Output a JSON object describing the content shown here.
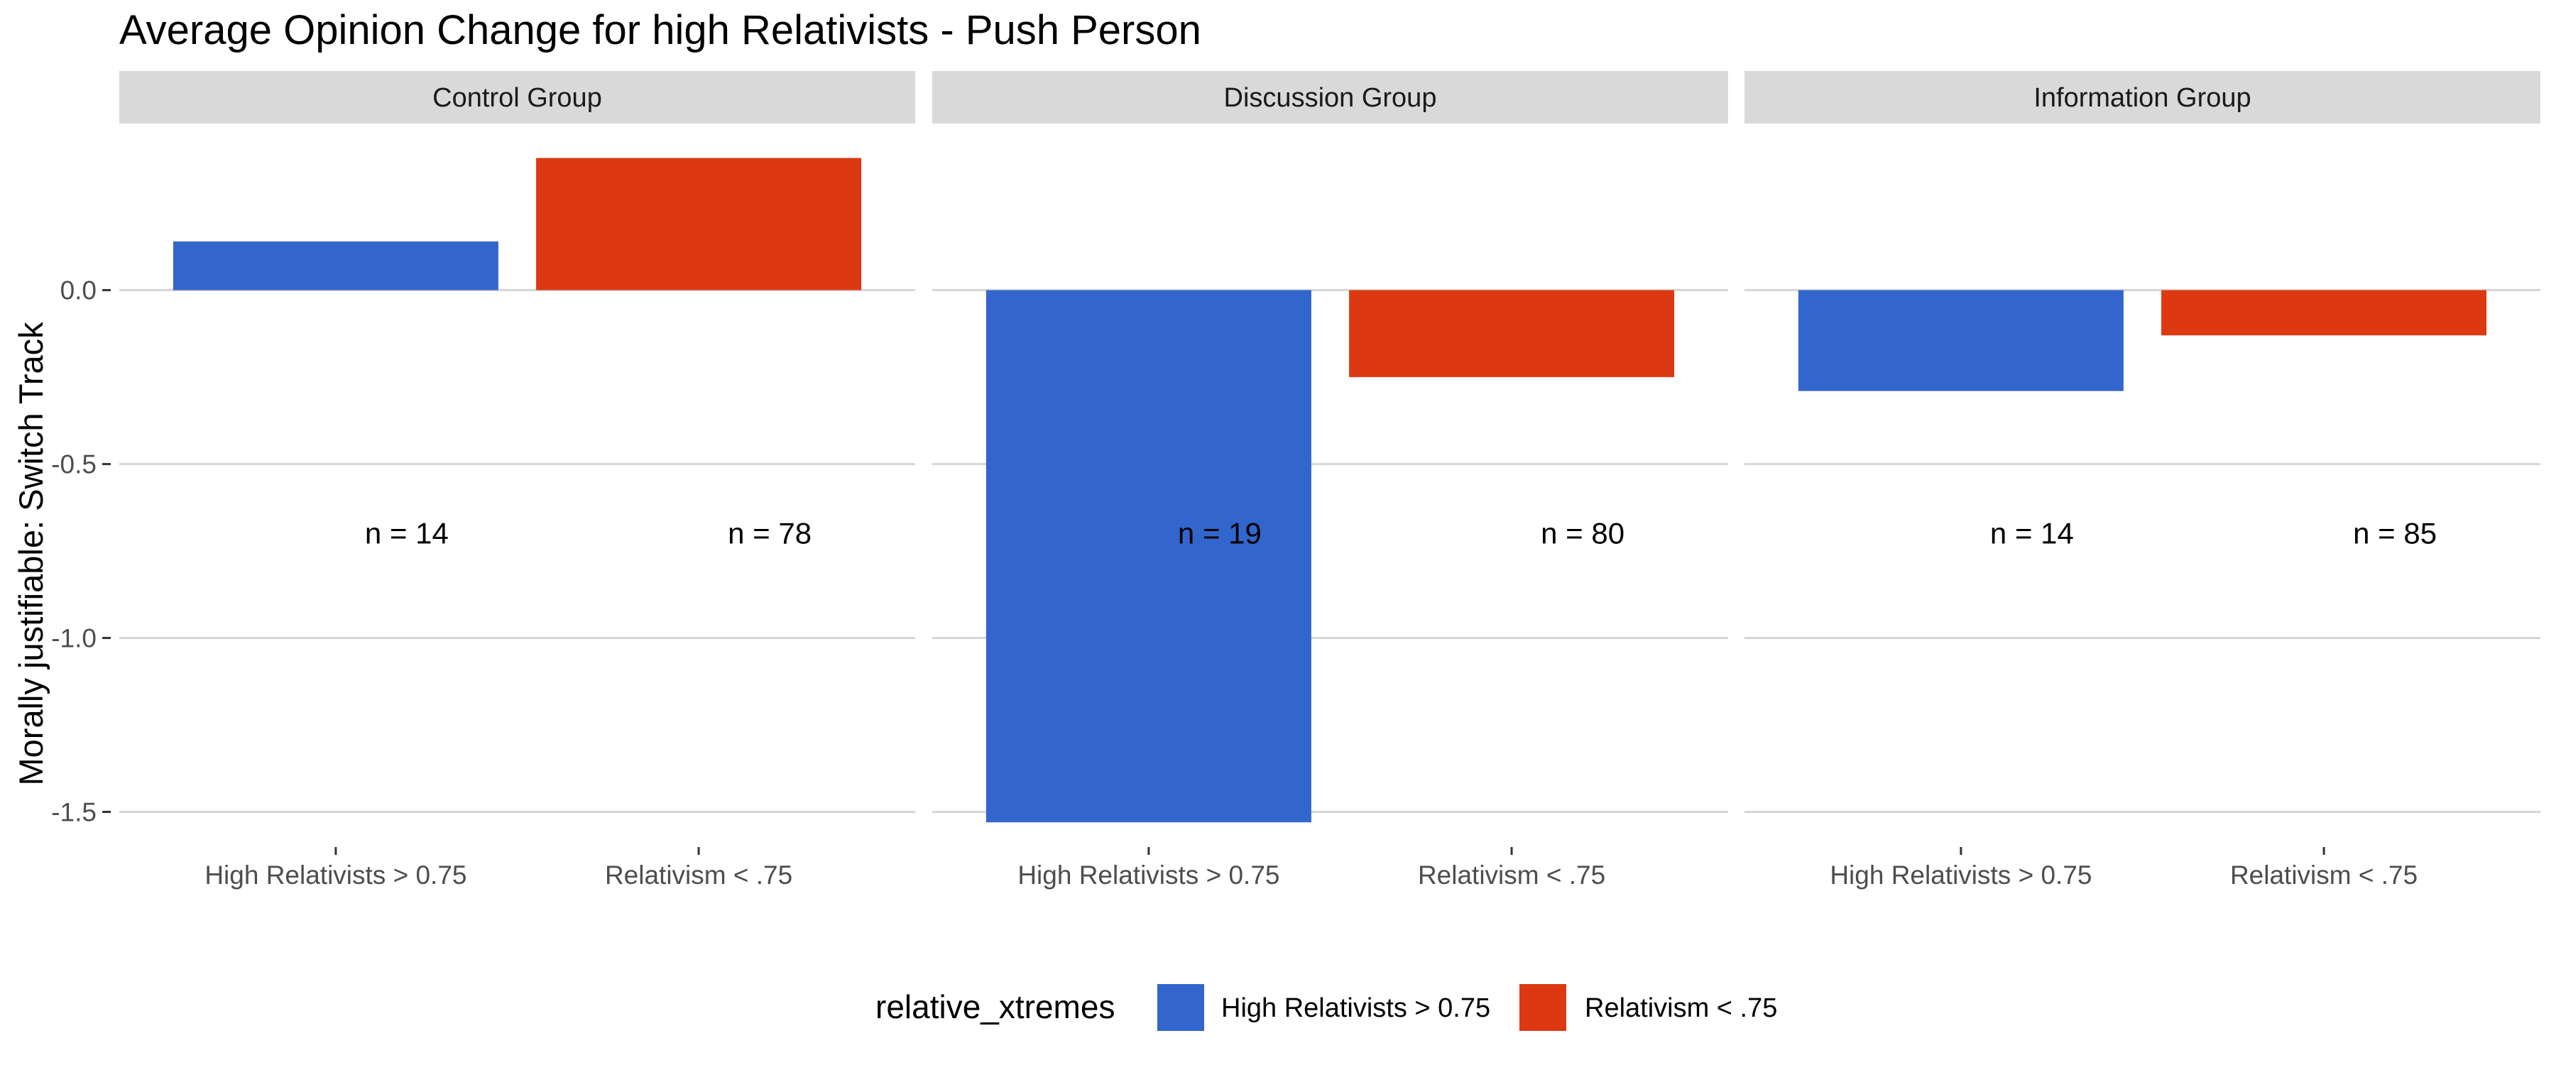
{
  "chart_data": {
    "type": "bar",
    "title": "Average Opinion Change for high Relativists - Push Person",
    "ylabel": "Morally justifiable: Switch Track",
    "xlabel": "",
    "ylim": [
      -1.55,
      0.43
    ],
    "yticks": [
      0.0,
      -0.5,
      -1.0,
      -1.5
    ],
    "ytick_labels": [
      "0.0",
      "-0.5",
      "-1.0",
      "-1.5"
    ],
    "categories": [
      "High Relativists > 0.75",
      "Relativism < .75"
    ],
    "grid": true,
    "legend": {
      "title": "relative_xtremes",
      "position": "bottom",
      "items": [
        "High Relativists > 0.75",
        "Relativism < .75"
      ]
    },
    "colors": {
      "High Relativists > 0.75": "#3366CC",
      "Relativism < .75": "#DC3912"
    },
    "facets": [
      {
        "name": "Control Group",
        "values": [
          0.14,
          0.38
        ],
        "annotations": [
          "n = 14",
          "n = 78"
        ]
      },
      {
        "name": "Discussion Group",
        "values": [
          -1.53,
          -0.25
        ],
        "annotations": [
          "n = 19",
          "n = 80"
        ]
      },
      {
        "name": "Information Group",
        "values": [
          -0.29,
          -0.13
        ],
        "annotations": [
          "n = 14",
          "n = 85"
        ]
      }
    ],
    "annotation_y": -0.7
  }
}
